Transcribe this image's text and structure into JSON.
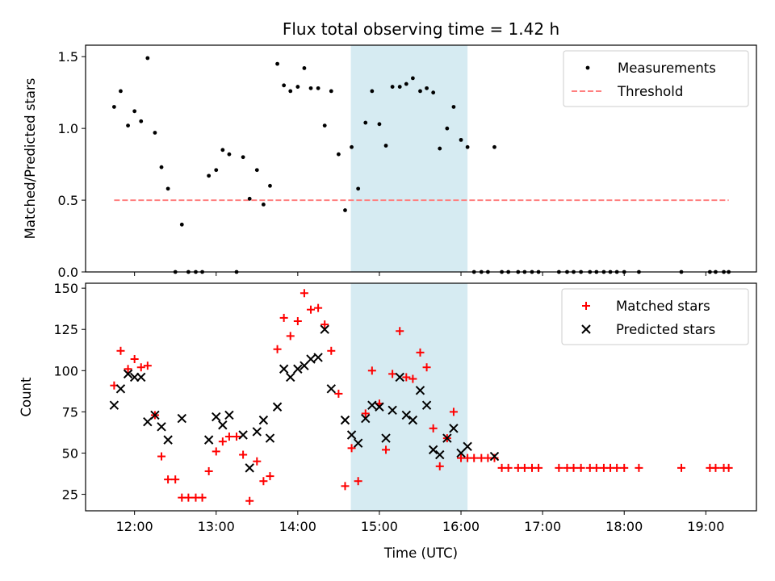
{
  "chart_data": [
    {
      "type": "scatter",
      "title": "Flux total observing time = 1.42 h",
      "xlabel": "",
      "ylabel": "Matched/Predicted stars",
      "ylim": [
        0,
        1.58
      ],
      "yticks": [
        0.0,
        0.5,
        1.0,
        1.5
      ],
      "ytick_labels": [
        "0.0",
        "0.5",
        "1.0",
        "1.5"
      ],
      "xlim": [
        11.4,
        19.62
      ],
      "xticks": [
        12,
        13,
        14,
        15,
        16,
        17,
        18,
        19
      ],
      "shaded_interval": [
        14.65,
        16.08
      ],
      "legend_position": "top-right",
      "legend": [
        "Measurements",
        "Threshold"
      ],
      "threshold": {
        "name": "Threshold",
        "y": 0.5,
        "x_range": [
          11.75,
          19.28
        ],
        "color": "#ff7f7f",
        "style": "dashed"
      },
      "series": [
        {
          "name": "Measurements",
          "color": "#000000",
          "marker": "dot",
          "x": [
            11.75,
            11.83,
            11.92,
            12.0,
            12.08,
            12.16,
            12.25,
            12.33,
            12.41,
            12.5,
            12.58,
            12.66,
            12.75,
            12.83,
            12.91,
            13.0,
            13.08,
            13.16,
            13.25,
            13.33,
            13.41,
            13.5,
            13.58,
            13.66,
            13.75,
            13.83,
            13.91,
            14.0,
            14.08,
            14.16,
            14.25,
            14.33,
            14.41,
            14.5,
            14.58,
            14.66,
            14.74,
            14.83,
            14.91,
            15.0,
            15.08,
            15.16,
            15.25,
            15.33,
            15.41,
            15.5,
            15.58,
            15.66,
            15.74,
            15.83,
            15.91,
            16.0,
            16.08,
            16.16,
            16.25,
            16.33,
            16.41,
            16.5,
            16.58,
            16.7,
            16.78,
            16.87,
            16.95,
            17.2,
            17.3,
            17.38,
            17.47,
            17.58,
            17.66,
            17.75,
            17.83,
            17.91,
            18.0,
            18.18,
            18.7,
            19.05,
            19.12,
            19.22,
            19.28
          ],
          "y": [
            1.15,
            1.26,
            1.02,
            1.12,
            1.05,
            1.49,
            0.97,
            0.73,
            0.58,
            0.0,
            0.33,
            0.0,
            0.0,
            0.0,
            0.67,
            0.71,
            0.85,
            0.82,
            0.0,
            0.8,
            0.51,
            0.71,
            0.47,
            0.6,
            1.45,
            1.3,
            1.26,
            1.29,
            1.42,
            1.28,
            1.28,
            1.02,
            1.26,
            0.82,
            0.43,
            0.87,
            0.58,
            1.04,
            1.26,
            1.03,
            0.88,
            1.29,
            1.29,
            1.31,
            1.35,
            1.26,
            1.28,
            1.25,
            0.86,
            1.0,
            1.15,
            0.92,
            0.87,
            0.0,
            0.0,
            0.0,
            0.87,
            0.0,
            0.0,
            0.0,
            0.0,
            0.0,
            0.0,
            0.0,
            0.0,
            0.0,
            0.0,
            0.0,
            0.0,
            0.0,
            0.0,
            0.0,
            0.0,
            0.0,
            0.0,
            0.0,
            0.0,
            0.0,
            0.0
          ]
        }
      ]
    },
    {
      "type": "scatter",
      "title": "",
      "xlabel": "Time (UTC)",
      "ylabel": "Count",
      "ylim": [
        15,
        153
      ],
      "yticks": [
        25,
        50,
        75,
        100,
        125,
        150
      ],
      "ytick_labels": [
        "25",
        "50",
        "75",
        "100",
        "125",
        "150"
      ],
      "xlim": [
        11.4,
        19.62
      ],
      "xticks": [
        12,
        13,
        14,
        15,
        16,
        17,
        18,
        19
      ],
      "xtick_labels": [
        "12:00",
        "13:00",
        "14:00",
        "15:00",
        "16:00",
        "17:00",
        "18:00",
        "19:00"
      ],
      "shaded_interval": [
        14.65,
        16.08
      ],
      "legend_position": "top-right",
      "legend": [
        "Matched stars",
        "Predicted stars"
      ],
      "series": [
        {
          "name": "Matched stars",
          "color": "#ff0000",
          "marker": "plus",
          "x": [
            11.75,
            11.83,
            11.92,
            12.0,
            12.08,
            12.16,
            12.25,
            12.33,
            12.41,
            12.5,
            12.58,
            12.66,
            12.75,
            12.83,
            12.91,
            13.0,
            13.08,
            13.16,
            13.25,
            13.33,
            13.41,
            13.5,
            13.58,
            13.66,
            13.75,
            13.83,
            13.91,
            14.0,
            14.08,
            14.16,
            14.25,
            14.33,
            14.41,
            14.5,
            14.58,
            14.66,
            14.74,
            14.83,
            14.91,
            15.0,
            15.08,
            15.16,
            15.25,
            15.33,
            15.41,
            15.5,
            15.58,
            15.66,
            15.74,
            15.83,
            15.91,
            16.0,
            16.08,
            16.16,
            16.25,
            16.33,
            16.41,
            16.5,
            16.58,
            16.7,
            16.78,
            16.87,
            16.95,
            17.2,
            17.3,
            17.38,
            17.47,
            17.58,
            17.66,
            17.75,
            17.83,
            17.91,
            18.0,
            18.18,
            18.7,
            19.05,
            19.12,
            19.22,
            19.28
          ],
          "y": [
            91,
            112,
            101,
            107,
            102,
            103,
            73,
            48,
            34,
            34,
            23,
            23,
            23,
            23,
            39,
            51,
            57,
            60,
            60,
            49,
            21,
            45,
            33,
            36,
            113,
            132,
            121,
            130,
            147,
            137,
            138,
            128,
            112,
            86,
            30,
            53,
            33,
            74,
            100,
            80,
            52,
            98,
            124,
            96,
            95,
            111,
            102,
            65,
            42,
            59,
            75,
            47,
            47,
            47,
            47,
            47,
            47,
            41,
            41,
            41,
            41,
            41,
            41,
            41,
            41,
            41,
            41,
            41,
            41,
            41,
            41,
            41,
            41,
            41,
            41,
            41,
            41,
            41,
            41
          ]
        },
        {
          "name": "Predicted stars",
          "color": "#000000",
          "marker": "x",
          "x": [
            11.75,
            11.83,
            11.92,
            12.0,
            12.08,
            12.16,
            12.25,
            12.33,
            12.41,
            12.58,
            12.91,
            13.0,
            13.08,
            13.16,
            13.33,
            13.41,
            13.5,
            13.58,
            13.66,
            13.75,
            13.83,
            13.91,
            14.0,
            14.08,
            14.16,
            14.25,
            14.33,
            14.41,
            14.58,
            14.66,
            14.74,
            14.83,
            14.91,
            15.0,
            15.08,
            15.16,
            15.25,
            15.33,
            15.41,
            15.5,
            15.58,
            15.66,
            15.74,
            15.83,
            15.91,
            16.0,
            16.08,
            16.41
          ],
          "y": [
            79,
            89,
            98,
            96,
            96,
            69,
            73,
            66,
            58,
            71,
            58,
            72,
            67,
            73,
            61,
            41,
            63,
            70,
            59,
            78,
            101,
            96,
            101,
            103,
            107,
            108,
            125,
            89,
            70,
            61,
            56,
            71,
            79,
            78,
            59,
            76,
            96,
            73,
            70,
            88,
            79,
            52,
            49,
            59,
            65,
            50,
            54,
            48
          ]
        }
      ]
    }
  ]
}
